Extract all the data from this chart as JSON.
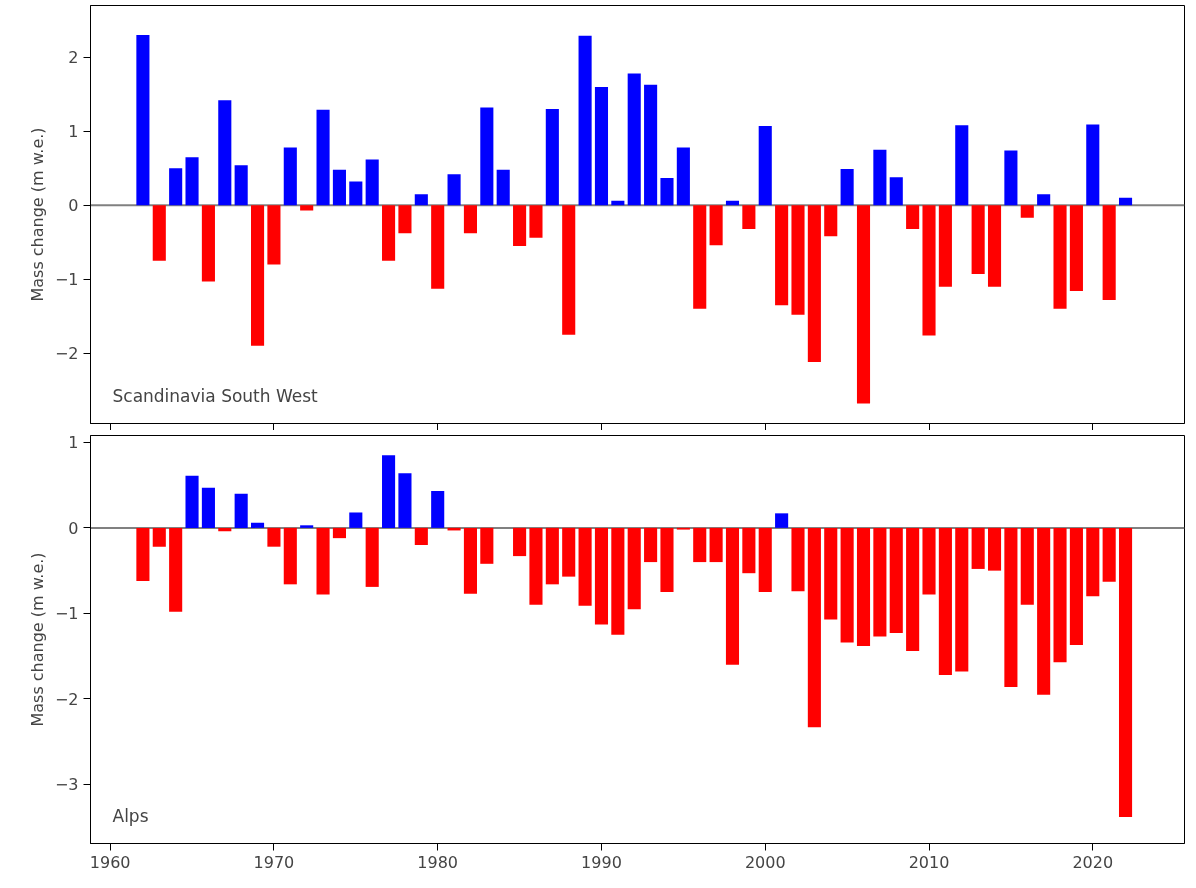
{
  "chart_data": [
    {
      "type": "bar",
      "ylabel": "Mass change (m w.e.)",
      "annotations": [
        "Scandinavia South West"
      ],
      "tick_labels": "y",
      "x": [
        1962,
        1963,
        1964,
        1965,
        1966,
        1967,
        1968,
        1969,
        1970,
        1971,
        1972,
        1973,
        1974,
        1975,
        1976,
        1977,
        1978,
        1979,
        1980,
        1981,
        1982,
        1983,
        1984,
        1985,
        1986,
        1987,
        1988,
        1989,
        1990,
        1991,
        1992,
        1993,
        1994,
        1995,
        1996,
        1997,
        1998,
        1999,
        2000,
        2001,
        2002,
        2003,
        2004,
        2005,
        2006,
        2007,
        2008,
        2009,
        2010,
        2011,
        2012,
        2013,
        2014,
        2015,
        2016,
        2017,
        2018,
        2019,
        2020,
        2021,
        2022
      ],
      "values": [
        2.3,
        -0.75,
        0.5,
        0.65,
        -1.03,
        1.42,
        0.54,
        -1.9,
        -0.8,
        0.78,
        -0.07,
        1.29,
        0.48,
        0.32,
        0.62,
        -0.75,
        -0.38,
        0.15,
        -1.13,
        0.42,
        -0.38,
        1.32,
        0.48,
        -0.55,
        -0.44,
        1.3,
        -1.75,
        2.29,
        1.6,
        0.06,
        1.78,
        1.63,
        0.37,
        0.78,
        -1.4,
        -0.54,
        0.06,
        -0.32,
        1.07,
        -1.35,
        -1.48,
        -2.12,
        -0.42,
        0.49,
        -2.68,
        0.75,
        0.38,
        -0.32,
        -1.76,
        -1.1,
        1.08,
        -0.93,
        -1.1,
        0.74,
        -0.17,
        0.15,
        -1.4,
        -1.16,
        1.09,
        -1.28,
        0.1
      ],
      "colors": [
        "#0000ff",
        "#ff0000",
        "#0000ff",
        "#0000ff",
        "#ff0000",
        "#0000ff",
        "#0000ff",
        "#ff0000",
        "#ff0000",
        "#0000ff",
        "#ff0000",
        "#0000ff",
        "#0000ff",
        "#0000ff",
        "#0000ff",
        "#ff0000",
        "#ff0000",
        "#0000ff",
        "#ff0000",
        "#0000ff",
        "#ff0000",
        "#0000ff",
        "#0000ff",
        "#ff0000",
        "#ff0000",
        "#0000ff",
        "#ff0000",
        "#0000ff",
        "#0000ff",
        "#0000ff",
        "#0000ff",
        "#0000ff",
        "#0000ff",
        "#0000ff",
        "#ff0000",
        "#ff0000",
        "#0000ff",
        "#ff0000",
        "#0000ff",
        "#ff0000",
        "#ff0000",
        "#ff0000",
        "#ff0000",
        "#0000ff",
        "#ff0000",
        "#0000ff",
        "#0000ff",
        "#ff0000",
        "#ff0000",
        "#ff0000",
        "#0000ff",
        "#ff0000",
        "#ff0000",
        "#0000ff",
        "#ff0000",
        "#0000ff",
        "#ff0000",
        "#ff0000",
        "#0000ff",
        "#ff0000",
        "#0000ff"
      ],
      "xlim": [
        1958.8,
        2025.6
      ],
      "xticks": [
        1960,
        1970,
        1980,
        1990,
        2000,
        2010,
        2020
      ],
      "ylim": [
        -2.95,
        2.7
      ],
      "yticks": [
        {
          "value": -2,
          "label": "−2"
        },
        {
          "value": -1,
          "label": "−1"
        },
        0,
        1,
        2
      ],
      "ref_lines": [
        {
          "axis": "y",
          "value": 0,
          "color": "#808080"
        }
      ]
    },
    {
      "type": "bar",
      "ylabel": "Mass change (m w.e.)",
      "annotations": [
        "Alps"
      ],
      "x": [
        1962,
        1963,
        1964,
        1965,
        1966,
        1967,
        1968,
        1969,
        1970,
        1971,
        1972,
        1973,
        1974,
        1975,
        1976,
        1977,
        1978,
        1979,
        1980,
        1981,
        1982,
        1983,
        1984,
        1985,
        1986,
        1987,
        1988,
        1989,
        1990,
        1991,
        1992,
        1993,
        1994,
        1995,
        1996,
        1997,
        1998,
        1999,
        2000,
        2001,
        2002,
        2003,
        2004,
        2005,
        2006,
        2007,
        2008,
        2009,
        2010,
        2011,
        2012,
        2013,
        2014,
        2015,
        2016,
        2017,
        2018,
        2019,
        2020,
        2021,
        2022
      ],
      "values": [
        -0.62,
        -0.22,
        -0.98,
        0.61,
        0.47,
        -0.04,
        0.4,
        0.06,
        -0.22,
        -0.66,
        0.03,
        -0.78,
        -0.12,
        0.18,
        -0.69,
        0.85,
        0.64,
        -0.2,
        0.43,
        -0.03,
        -0.77,
        -0.42,
        0.0,
        -0.33,
        -0.9,
        -0.66,
        -0.57,
        -0.91,
        -1.13,
        -1.25,
        -0.95,
        -0.4,
        -0.75,
        -0.02,
        -0.4,
        -0.4,
        -1.6,
        -0.53,
        -0.75,
        0.17,
        -0.74,
        -2.33,
        -1.07,
        -1.34,
        -1.38,
        -1.27,
        -1.23,
        -1.44,
        -0.78,
        -1.72,
        -1.68,
        -0.48,
        -0.5,
        -1.86,
        -0.9,
        -1.95,
        -1.57,
        -1.37,
        -0.8,
        -0.63,
        -3.38
      ],
      "colors": [
        "#ff0000",
        "#ff0000",
        "#ff0000",
        "#0000ff",
        "#0000ff",
        "#ff0000",
        "#0000ff",
        "#0000ff",
        "#ff0000",
        "#ff0000",
        "#0000ff",
        "#ff0000",
        "#ff0000",
        "#0000ff",
        "#ff0000",
        "#0000ff",
        "#0000ff",
        "#ff0000",
        "#0000ff",
        "#ff0000",
        "#ff0000",
        "#ff0000",
        "#ff0000",
        "#ff0000",
        "#ff0000",
        "#ff0000",
        "#ff0000",
        "#ff0000",
        "#ff0000",
        "#ff0000",
        "#ff0000",
        "#ff0000",
        "#ff0000",
        "#ff0000",
        "#ff0000",
        "#ff0000",
        "#ff0000",
        "#ff0000",
        "#ff0000",
        "#0000ff",
        "#ff0000",
        "#ff0000",
        "#ff0000",
        "#ff0000",
        "#ff0000",
        "#ff0000",
        "#ff0000",
        "#ff0000",
        "#ff0000",
        "#ff0000",
        "#ff0000",
        "#ff0000",
        "#ff0000",
        "#ff0000",
        "#ff0000",
        "#ff0000",
        "#ff0000",
        "#ff0000",
        "#ff0000",
        "#ff0000",
        "#ff0000"
      ],
      "xlim": [
        1958.8,
        2025.6
      ],
      "xticks": [
        1960,
        1970,
        1980,
        1990,
        2000,
        2010,
        2020
      ],
      "ylim": [
        -3.69,
        1.08
      ],
      "yticks": [
        {
          "value": -3,
          "label": "−3"
        },
        {
          "value": -2,
          "label": "−2"
        },
        {
          "value": -1,
          "label": "−1"
        },
        0,
        1
      ],
      "ref_lines": [
        {
          "axis": "y",
          "value": 0,
          "color": "#808080"
        }
      ]
    }
  ]
}
